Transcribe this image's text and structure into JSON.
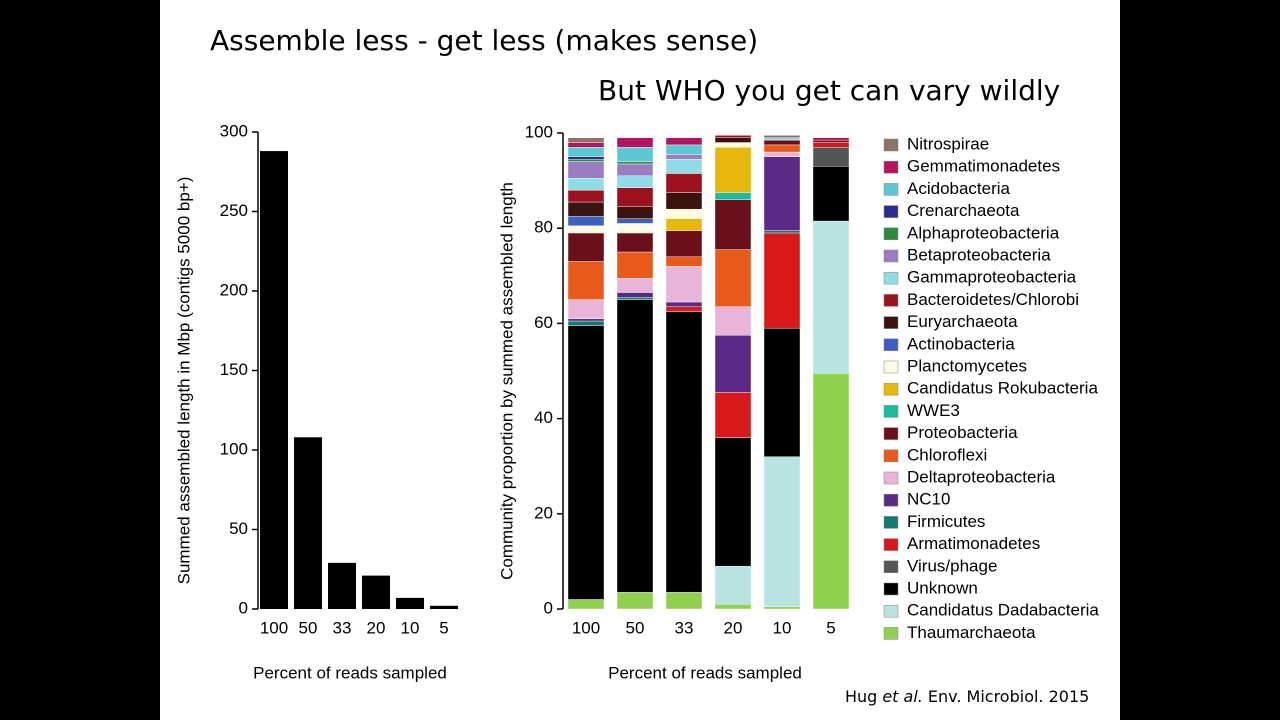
{
  "slide": {
    "title": "Assemble less - get less (makes sense)",
    "subtitle": "But WHO you get can vary wildly",
    "citation": {
      "author": "Hug",
      "etal": "et al.",
      "source": "Env. Microbiol. 2015"
    }
  },
  "chart_data": [
    {
      "type": "bar",
      "categories": [
        "100",
        "50",
        "33",
        "20",
        "10",
        "5"
      ],
      "values": [
        288,
        108,
        29,
        21,
        7,
        2
      ],
      "color": "#000000",
      "ylim": [
        0,
        300
      ],
      "yticks": [
        0,
        50,
        100,
        150,
        200,
        250,
        300
      ],
      "ylabel": "Summed assembled length in Mbp (contigs 5000 bp+)",
      "xlabel": "Percent of reads sampled"
    },
    {
      "type": "stacked_bar",
      "categories": [
        "100",
        "50",
        "33",
        "20",
        "10",
        "5"
      ],
      "ylim": [
        0,
        100
      ],
      "yticks": [
        0,
        20,
        40,
        60,
        80,
        100
      ],
      "ylabel": "Community proportion by summed assembled length",
      "xlabel": "Percent of reads sampled",
      "series": [
        {
          "name": "Thaumarchaeota",
          "color": "#8fd14f",
          "values": [
            2,
            3.5,
            3.5,
            1,
            0.5,
            49.5
          ]
        },
        {
          "name": "Candidatus Dadabacteria",
          "color": "#b8e3e0",
          "values": [
            0,
            0,
            0,
            8,
            31.5,
            32
          ]
        },
        {
          "name": "Unknown",
          "color": "#000000",
          "values": [
            57.5,
            61.5,
            59,
            27,
            27,
            11.5
          ]
        },
        {
          "name": "Virus/phage",
          "color": "#555555",
          "values": [
            0,
            0,
            0,
            0,
            0,
            4
          ]
        },
        {
          "name": "Armatimonadetes",
          "color": "#d7191c",
          "values": [
            0,
            0,
            1,
            9.5,
            20,
            1
          ]
        },
        {
          "name": "Firmicutes",
          "color": "#137a6e",
          "values": [
            1,
            0.5,
            0,
            0,
            0.5,
            0
          ]
        },
        {
          "name": "NC10",
          "color": "#5b2a86",
          "values": [
            0.5,
            1,
            1,
            12,
            15.5,
            0
          ]
        },
        {
          "name": "Deltaproteobacteria",
          "color": "#e8b4d8",
          "values": [
            4,
            3,
            7.5,
            6,
            1,
            0
          ]
        },
        {
          "name": "Chloroflexi",
          "color": "#e8591a",
          "values": [
            8,
            5.5,
            2,
            12,
            1.5,
            0
          ]
        },
        {
          "name": "Proteobacteria",
          "color": "#6b0f1a",
          "values": [
            6,
            4,
            5.5,
            10.5,
            1,
            0.5
          ]
        },
        {
          "name": "WWE3",
          "color": "#1abc9c",
          "values": [
            0,
            0,
            0,
            1.5,
            0,
            0
          ]
        },
        {
          "name": "Candidatus Rokubacteria",
          "color": "#e6b80b",
          "values": [
            0,
            0,
            2.5,
            9.5,
            0,
            0
          ]
        },
        {
          "name": "Planctomycetes",
          "color": "#fffbe0",
          "values": [
            1.5,
            2,
            2,
            1,
            0,
            0
          ]
        },
        {
          "name": "Actinobacteria",
          "color": "#3f5fbf",
          "values": [
            2,
            1,
            0,
            0,
            0,
            0
          ]
        },
        {
          "name": "Euryarchaeota",
          "color": "#3a1510",
          "values": [
            3,
            2.5,
            3.5,
            1,
            0,
            0
          ]
        },
        {
          "name": "Bacteroidetes/Chlorobi",
          "color": "#9b111e",
          "values": [
            2.5,
            4,
            4,
            0.5,
            0,
            0
          ]
        },
        {
          "name": "Gammaproteobacteria",
          "color": "#8fdce6",
          "values": [
            2.5,
            2.5,
            3,
            0,
            0.5,
            0
          ]
        },
        {
          "name": "Betaproteobacteria",
          "color": "#9b7cc0",
          "values": [
            3.5,
            2.5,
            1,
            0,
            0,
            0
          ]
        },
        {
          "name": "Alphaproteobacteria",
          "color": "#2e8b3e",
          "values": [
            0.5,
            0.5,
            0,
            0,
            0,
            0
          ]
        },
        {
          "name": "Crenarchaeota",
          "color": "#2a2a8f",
          "values": [
            0.5,
            0,
            0,
            0,
            0,
            0
          ]
        },
        {
          "name": "Acidobacteria",
          "color": "#5bc8d4",
          "values": [
            2,
            3,
            2,
            0,
            0,
            0
          ]
        },
        {
          "name": "Gemmatimonadetes",
          "color": "#b5135f",
          "values": [
            1,
            2,
            1.5,
            0,
            0,
            0.5
          ]
        },
        {
          "name": "Nitrospirae",
          "color": "#8b7366",
          "values": [
            1,
            0,
            0,
            0,
            0.5,
            0
          ]
        }
      ]
    }
  ]
}
